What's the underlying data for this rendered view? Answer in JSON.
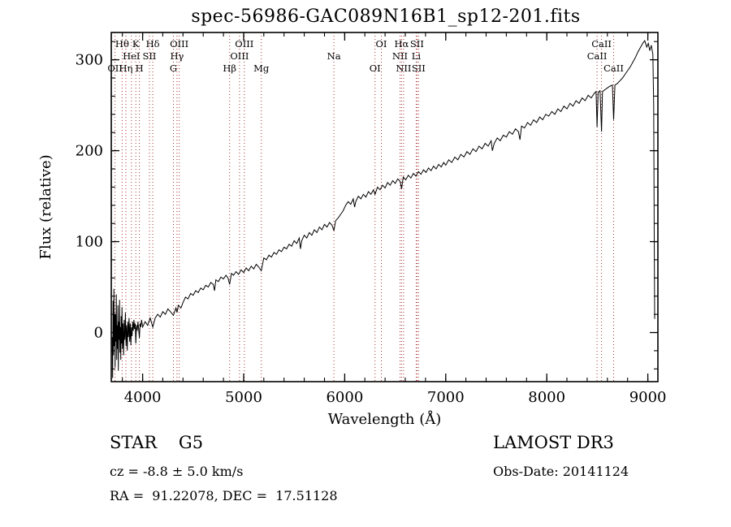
{
  "title": "spec-56986-GAC089N16B1_sp12-201.fits",
  "annotations": {
    "class_line": "STAR    G5",
    "cz_line": "cz = -8.8 ± 5.0 km/s",
    "radec_line": "RA =  91.22078, DEC =  17.51128",
    "survey": "LAMOST DR3",
    "obs_date": "Obs-Date: 20141124"
  },
  "chart_data": {
    "type": "line",
    "title": "spec-56986-GAC089N16B1_sp12-201.fits",
    "xlabel": "Wavelength (Å)",
    "ylabel": "Flux (relative)",
    "xlim": [
      3690,
      9100
    ],
    "ylim": [
      -54,
      330
    ],
    "xticks": [
      4000,
      5000,
      6000,
      7000,
      8000,
      9000
    ],
    "yticks": [
      0,
      100,
      200,
      300
    ],
    "x_minor_step": 200,
    "y_minor_step": 20,
    "grid": false,
    "legend": "none",
    "axis_color": "#000000",
    "series_color": "#000000",
    "line_marker_color": "#a83232",
    "spectral_lines": [
      {
        "wavelength": 3727,
        "label": "OII",
        "row": 3
      },
      {
        "wavelength": 3798,
        "label": "Hθ",
        "row": 1
      },
      {
        "wavelength": 3835,
        "label": "Hη",
        "row": 3
      },
      {
        "wavelength": 3889,
        "label": "HeI",
        "row": 2
      },
      {
        "wavelength": 3933,
        "label": "K",
        "row": 1
      },
      {
        "wavelength": 3968,
        "label": "H",
        "row": 3
      },
      {
        "wavelength": 4068,
        "label": "SII",
        "row": 2
      },
      {
        "wavelength": 4101,
        "label": "Hδ",
        "row": 1
      },
      {
        "wavelength": 4305,
        "label": "G",
        "row": 3
      },
      {
        "wavelength": 4340,
        "label": "Hγ",
        "row": 2
      },
      {
        "wavelength": 4363,
        "label": "OIII",
        "row": 1
      },
      {
        "wavelength": 4861,
        "label": "Hβ",
        "row": 3
      },
      {
        "wavelength": 4959,
        "label": "OIII",
        "row": 2
      },
      {
        "wavelength": 5007,
        "label": "OIII",
        "row": 1
      },
      {
        "wavelength": 5175,
        "label": "Mg",
        "row": 3
      },
      {
        "wavelength": 5893,
        "label": "Na",
        "row": 2
      },
      {
        "wavelength": 6300,
        "label": "OI",
        "row": 3
      },
      {
        "wavelength": 6363,
        "label": "OI",
        "row": 1
      },
      {
        "wavelength": 6548,
        "label": "NII",
        "row": 2
      },
      {
        "wavelength": 6563,
        "label": "Hα",
        "row": 1
      },
      {
        "wavelength": 6583,
        "label": "NII",
        "row": 3
      },
      {
        "wavelength": 6708,
        "label": "Li",
        "row": 2
      },
      {
        "wavelength": 6716,
        "label": "SII",
        "row": 1
      },
      {
        "wavelength": 6731,
        "label": "SII",
        "row": 3
      },
      {
        "wavelength": 8498,
        "label": "CaII",
        "row": 2
      },
      {
        "wavelength": 8542,
        "label": "CaII",
        "row": 1
      },
      {
        "wavelength": 8662,
        "label": "CaII",
        "row": 3
      }
    ],
    "series": [
      {
        "name": "flux",
        "points": [
          [
            3700,
            -5
          ],
          [
            3704,
            -50
          ],
          [
            3708,
            35
          ],
          [
            3712,
            -25
          ],
          [
            3716,
            48
          ],
          [
            3720,
            -15
          ],
          [
            3724,
            20
          ],
          [
            3728,
            -38
          ],
          [
            3732,
            20
          ],
          [
            3736,
            -10
          ],
          [
            3740,
            42
          ],
          [
            3744,
            -30
          ],
          [
            3748,
            8
          ],
          [
            3752,
            -18
          ],
          [
            3756,
            30
          ],
          [
            3760,
            -42
          ],
          [
            3764,
            12
          ],
          [
            3768,
            -8
          ],
          [
            3772,
            36
          ],
          [
            3776,
            -22
          ],
          [
            3780,
            6
          ],
          [
            3784,
            -30
          ],
          [
            3788,
            18
          ],
          [
            3792,
            -12
          ],
          [
            3796,
            28
          ],
          [
            3800,
            -18
          ],
          [
            3806,
            10
          ],
          [
            3812,
            -25
          ],
          [
            3818,
            14
          ],
          [
            3824,
            -8
          ],
          [
            3830,
            22
          ],
          [
            3836,
            -15
          ],
          [
            3842,
            8
          ],
          [
            3848,
            -20
          ],
          [
            3854,
            12
          ],
          [
            3860,
            -5
          ],
          [
            3866,
            16
          ],
          [
            3872,
            -10
          ],
          [
            3878,
            10
          ],
          [
            3884,
            -14
          ],
          [
            3890,
            6
          ],
          [
            3896,
            -4
          ],
          [
            3902,
            12
          ],
          [
            3908,
            2
          ],
          [
            3914,
            14
          ],
          [
            3920,
            4
          ],
          [
            3926,
            10
          ],
          [
            3933,
            -12
          ],
          [
            3940,
            8
          ],
          [
            3947,
            2
          ],
          [
            3954,
            12
          ],
          [
            3961,
            4
          ],
          [
            3968,
            -6
          ],
          [
            3975,
            10
          ],
          [
            3982,
            6
          ],
          [
            3990,
            14
          ],
          [
            4000,
            6
          ],
          [
            4025,
            12
          ],
          [
            4050,
            8
          ],
          [
            4075,
            16
          ],
          [
            4101,
            6
          ],
          [
            4125,
            16
          ],
          [
            4150,
            20
          ],
          [
            4175,
            17
          ],
          [
            4200,
            23
          ],
          [
            4225,
            20
          ],
          [
            4250,
            26
          ],
          [
            4275,
            23
          ],
          [
            4305,
            19
          ],
          [
            4330,
            27
          ],
          [
            4340,
            22
          ],
          [
            4355,
            30
          ],
          [
            4380,
            27
          ],
          [
            4400,
            33
          ],
          [
            4425,
            39
          ],
          [
            4450,
            37
          ],
          [
            4475,
            43
          ],
          [
            4500,
            41
          ],
          [
            4525,
            46
          ],
          [
            4550,
            44
          ],
          [
            4575,
            49
          ],
          [
            4600,
            47
          ],
          [
            4625,
            52
          ],
          [
            4650,
            50
          ],
          [
            4675,
            55
          ],
          [
            4700,
            53
          ],
          [
            4712,
            46
          ],
          [
            4725,
            58
          ],
          [
            4750,
            56
          ],
          [
            4775,
            61
          ],
          [
            4800,
            59
          ],
          [
            4825,
            63
          ],
          [
            4845,
            60
          ],
          [
            4861,
            53
          ],
          [
            4880,
            65
          ],
          [
            4900,
            63
          ],
          [
            4925,
            67
          ],
          [
            4950,
            64
          ],
          [
            4975,
            69
          ],
          [
            5000,
            66
          ],
          [
            5025,
            71
          ],
          [
            5050,
            68
          ],
          [
            5075,
            73
          ],
          [
            5100,
            70
          ],
          [
            5125,
            75
          ],
          [
            5150,
            72
          ],
          [
            5175,
            68
          ],
          [
            5200,
            82
          ],
          [
            5225,
            80
          ],
          [
            5250,
            85
          ],
          [
            5275,
            83
          ],
          [
            5300,
            88
          ],
          [
            5325,
            86
          ],
          [
            5350,
            91
          ],
          [
            5375,
            89
          ],
          [
            5400,
            94
          ],
          [
            5425,
            92
          ],
          [
            5450,
            97
          ],
          [
            5475,
            95
          ],
          [
            5500,
            101
          ],
          [
            5525,
            98
          ],
          [
            5550,
            104
          ],
          [
            5562,
            92
          ],
          [
            5575,
            101
          ],
          [
            5600,
            107
          ],
          [
            5625,
            104
          ],
          [
            5650,
            110
          ],
          [
            5675,
            107
          ],
          [
            5700,
            113
          ],
          [
            5725,
            110
          ],
          [
            5750,
            116
          ],
          [
            5775,
            113
          ],
          [
            5800,
            119
          ],
          [
            5825,
            116
          ],
          [
            5850,
            121
          ],
          [
            5875,
            118
          ],
          [
            5893,
            112
          ],
          [
            5910,
            123
          ],
          [
            5935,
            126
          ],
          [
            5960,
            130
          ],
          [
            5985,
            134
          ],
          [
            6010,
            140
          ],
          [
            6035,
            144
          ],
          [
            6060,
            141
          ],
          [
            6085,
            147
          ],
          [
            6098,
            138
          ],
          [
            6110,
            144
          ],
          [
            6135,
            150
          ],
          [
            6160,
            147
          ],
          [
            6185,
            152
          ],
          [
            6210,
            149
          ],
          [
            6235,
            155
          ],
          [
            6260,
            152
          ],
          [
            6285,
            157
          ],
          [
            6300,
            152
          ],
          [
            6325,
            160
          ],
          [
            6350,
            157
          ],
          [
            6375,
            162
          ],
          [
            6400,
            159
          ],
          [
            6425,
            165
          ],
          [
            6450,
            162
          ],
          [
            6475,
            167
          ],
          [
            6500,
            164
          ],
          [
            6525,
            169
          ],
          [
            6550,
            166
          ],
          [
            6563,
            158
          ],
          [
            6580,
            171
          ],
          [
            6605,
            168
          ],
          [
            6630,
            173
          ],
          [
            6655,
            170
          ],
          [
            6680,
            175
          ],
          [
            6705,
            172
          ],
          [
            6730,
            177
          ],
          [
            6755,
            174
          ],
          [
            6780,
            179
          ],
          [
            6805,
            176
          ],
          [
            6830,
            181
          ],
          [
            6855,
            178
          ],
          [
            6880,
            183
          ],
          [
            6905,
            180
          ],
          [
            6930,
            185
          ],
          [
            6955,
            182
          ],
          [
            6980,
            187
          ],
          [
            7000,
            184
          ],
          [
            7030,
            190
          ],
          [
            7060,
            187
          ],
          [
            7090,
            193
          ],
          [
            7120,
            190
          ],
          [
            7150,
            196
          ],
          [
            7180,
            193
          ],
          [
            7210,
            199
          ],
          [
            7240,
            196
          ],
          [
            7270,
            202
          ],
          [
            7300,
            199
          ],
          [
            7330,
            205
          ],
          [
            7360,
            202
          ],
          [
            7390,
            208
          ],
          [
            7420,
            205
          ],
          [
            7450,
            211
          ],
          [
            7462,
            200
          ],
          [
            7480,
            208
          ],
          [
            7510,
            214
          ],
          [
            7540,
            211
          ],
          [
            7570,
            217
          ],
          [
            7600,
            215
          ],
          [
            7630,
            221
          ],
          [
            7660,
            218
          ],
          [
            7690,
            224
          ],
          [
            7720,
            221
          ],
          [
            7735,
            212
          ],
          [
            7750,
            227
          ],
          [
            7780,
            225
          ],
          [
            7810,
            231
          ],
          [
            7840,
            228
          ],
          [
            7870,
            234
          ],
          [
            7900,
            231
          ],
          [
            7930,
            237
          ],
          [
            7960,
            234
          ],
          [
            7990,
            240
          ],
          [
            8020,
            238
          ],
          [
            8050,
            243
          ],
          [
            8080,
            240
          ],
          [
            8110,
            246
          ],
          [
            8140,
            243
          ],
          [
            8170,
            249
          ],
          [
            8200,
            246
          ],
          [
            8230,
            252
          ],
          [
            8260,
            249
          ],
          [
            8290,
            255
          ],
          [
            8320,
            252
          ],
          [
            8350,
            258
          ],
          [
            8380,
            255
          ],
          [
            8410,
            261
          ],
          [
            8440,
            258
          ],
          [
            8470,
            263
          ],
          [
            8488,
            265
          ],
          [
            8498,
            226
          ],
          [
            8508,
            264
          ],
          [
            8528,
            266
          ],
          [
            8542,
            221
          ],
          [
            8552,
            265
          ],
          [
            8575,
            267
          ],
          [
            8600,
            269
          ],
          [
            8625,
            271
          ],
          [
            8650,
            272
          ],
          [
            8662,
            234
          ],
          [
            8675,
            272
          ],
          [
            8700,
            274
          ],
          [
            8725,
            277
          ],
          [
            8750,
            280
          ],
          [
            8775,
            284
          ],
          [
            8800,
            288
          ],
          [
            8825,
            292
          ],
          [
            8850,
            297
          ],
          [
            8875,
            302
          ],
          [
            8900,
            308
          ],
          [
            8925,
            313
          ],
          [
            8950,
            318
          ],
          [
            8970,
            321
          ],
          [
            8990,
            314
          ],
          [
            9005,
            318
          ],
          [
            9020,
            310
          ],
          [
            9035,
            316
          ],
          [
            9050,
            306
          ],
          [
            9058,
            250
          ],
          [
            9063,
            120
          ],
          [
            9068,
            15
          ]
        ]
      }
    ]
  }
}
